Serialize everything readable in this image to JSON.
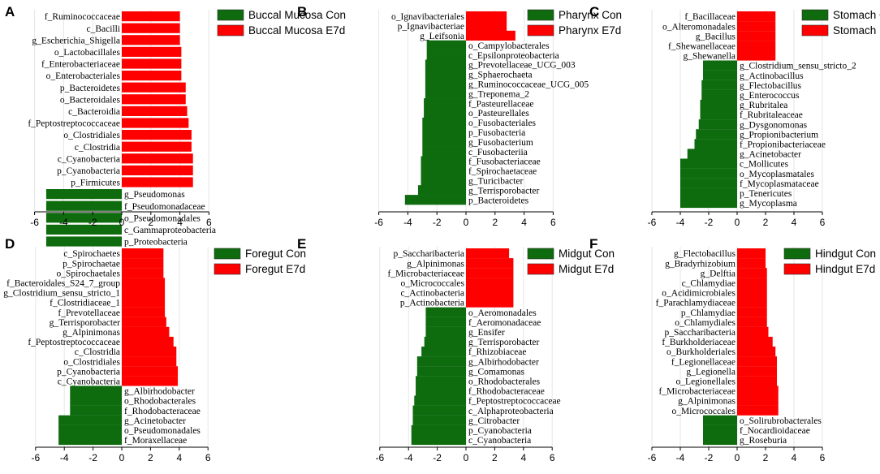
{
  "chart_data": [
    {
      "type": "bar",
      "panel": "A",
      "orientation": "horizontal",
      "legend": [
        {
          "name": "Buccal Mucosa Con",
          "color": "#0e6b0e"
        },
        {
          "name": "Buccal Mucosa E7d",
          "color": "#ff0000"
        }
      ],
      "xticks": [
        -6,
        -4,
        -2,
        0,
        2,
        4,
        6
      ],
      "xlim": [
        -6.5,
        6.5
      ],
      "bars": [
        {
          "label": "f_Ruminococcaceae",
          "value": 4.0,
          "group": "E7d"
        },
        {
          "label": "c_Bacilli",
          "value": 4.0,
          "group": "E7d"
        },
        {
          "label": "g_Escherichia_Shigella",
          "value": 4.0,
          "group": "E7d"
        },
        {
          "label": "o_Lactobacillales",
          "value": 4.1,
          "group": "E7d"
        },
        {
          "label": "f_Enterobacteriaceae",
          "value": 4.1,
          "group": "E7d"
        },
        {
          "label": "o_Enterobacteriales",
          "value": 4.1,
          "group": "E7d"
        },
        {
          "label": "p_Bacteroidetes",
          "value": 4.4,
          "group": "E7d"
        },
        {
          "label": "o_Bacteroidales",
          "value": 4.4,
          "group": "E7d"
        },
        {
          "label": "c_Bacteroidia",
          "value": 4.5,
          "group": "E7d"
        },
        {
          "label": "f_Peptostreptococcaceae",
          "value": 4.6,
          "group": "E7d"
        },
        {
          "label": "o_Clostridiales",
          "value": 4.8,
          "group": "E7d"
        },
        {
          "label": "c_Clostridia",
          "value": 4.8,
          "group": "E7d"
        },
        {
          "label": "c_Cyanobacteria",
          "value": 4.9,
          "group": "E7d"
        },
        {
          "label": "p_Cyanobacteria",
          "value": 4.9,
          "group": "E7d"
        },
        {
          "label": "p_Firmicutes",
          "value": 4.9,
          "group": "E7d"
        },
        {
          "label": "g_Pseudomonas",
          "value": -5.2,
          "group": "Con"
        },
        {
          "label": "f_Pseudomonadaceae",
          "value": -5.2,
          "group": "Con"
        },
        {
          "label": "o_Pseudomonadales",
          "value": -5.2,
          "group": "Con"
        },
        {
          "label": "c_Gammaproteobacteria",
          "value": -5.2,
          "group": "Con"
        },
        {
          "label": "p_Proteobacteria",
          "value": -5.2,
          "group": "Con"
        }
      ]
    },
    {
      "type": "bar",
      "panel": "B",
      "orientation": "horizontal",
      "legend": [
        {
          "name": "Pharynx Con",
          "color": "#0e6b0e"
        },
        {
          "name": "Pharynx E7d",
          "color": "#ff0000"
        }
      ],
      "xticks": [
        -6,
        -4,
        -2,
        0,
        2,
        4,
        6
      ],
      "xlim": [
        -6.5,
        6.5
      ],
      "bars": [
        {
          "label": "o_Ignavibacteriales",
          "value": 2.8,
          "group": "E7d"
        },
        {
          "label": "p_Ignavibacteriae",
          "value": 2.8,
          "group": "E7d"
        },
        {
          "label": "g_Leifsonia",
          "value": 3.4,
          "group": "E7d"
        },
        {
          "label": "o_Campylobacterales",
          "value": -2.7,
          "group": "Con"
        },
        {
          "label": "c_Epsilonproteobacteria",
          "value": -2.7,
          "group": "Con"
        },
        {
          "label": "g_Prevotellaceae_UCG_003",
          "value": -2.8,
          "group": "Con"
        },
        {
          "label": "g_Sphaerochaeta",
          "value": -2.8,
          "group": "Con"
        },
        {
          "label": "g_Ruminococcaceae_UCG_005",
          "value": -2.8,
          "group": "Con"
        },
        {
          "label": "g_Treponema_2",
          "value": -2.8,
          "group": "Con"
        },
        {
          "label": "f_Pasteurellaceae",
          "value": -2.9,
          "group": "Con"
        },
        {
          "label": "o_Pasteurellales",
          "value": -2.9,
          "group": "Con"
        },
        {
          "label": "o_Fusobacteriales",
          "value": -3.0,
          "group": "Con"
        },
        {
          "label": "p_Fusobacteria",
          "value": -3.0,
          "group": "Con"
        },
        {
          "label": "g_Fusobacterium",
          "value": -3.0,
          "group": "Con"
        },
        {
          "label": "c_Fusobacteriia",
          "value": -3.0,
          "group": "Con"
        },
        {
          "label": "f_Fusobacteriaceae",
          "value": -3.1,
          "group": "Con"
        },
        {
          "label": "f_Spirochaetaceae",
          "value": -3.1,
          "group": "Con"
        },
        {
          "label": "g_Turicibacter",
          "value": -3.1,
          "group": "Con"
        },
        {
          "label": "g_Terrisporobacter",
          "value": -3.3,
          "group": "Con"
        },
        {
          "label": "p_Bacteroidetes",
          "value": -4.2,
          "group": "Con"
        }
      ]
    },
    {
      "type": "bar",
      "panel": "C",
      "orientation": "horizontal",
      "legend": [
        {
          "name": "Stomach Con",
          "color": "#0e6b0e"
        },
        {
          "name": "Stomach E7d",
          "color": "#ff0000"
        }
      ],
      "xticks": [
        -6,
        -4,
        -2,
        0,
        2,
        4,
        6
      ],
      "xlim": [
        -6.5,
        6.5
      ],
      "bars": [
        {
          "label": "f_Bacillaceae",
          "value": 2.7,
          "group": "E7d"
        },
        {
          "label": "o_Alteromonadales",
          "value": 2.7,
          "group": "E7d"
        },
        {
          "label": "g_Bacillus",
          "value": 2.7,
          "group": "E7d"
        },
        {
          "label": "f_Shewanellaceae",
          "value": 2.7,
          "group": "E7d"
        },
        {
          "label": "g_Shewanella",
          "value": 2.7,
          "group": "E7d"
        },
        {
          "label": "g_Clostridium_sensu_stricto_2",
          "value": -2.4,
          "group": "Con"
        },
        {
          "label": "g_Actinobacillus",
          "value": -2.4,
          "group": "Con"
        },
        {
          "label": "g_Flectobacillus",
          "value": -2.5,
          "group": "Con"
        },
        {
          "label": "g_Enterococcus",
          "value": -2.5,
          "group": "Con"
        },
        {
          "label": "g_Rubritalea",
          "value": -2.6,
          "group": "Con"
        },
        {
          "label": "f_Rubritaleaceae",
          "value": -2.6,
          "group": "Con"
        },
        {
          "label": "g_Dysgonomonas",
          "value": -2.7,
          "group": "Con"
        },
        {
          "label": "g_Propionibacterium",
          "value": -2.9,
          "group": "Con"
        },
        {
          "label": "f_Propionibacteriaceae",
          "value": -3.0,
          "group": "Con"
        },
        {
          "label": "g_Acinetobacter",
          "value": -3.5,
          "group": "Con"
        },
        {
          "label": "c_Mollicutes",
          "value": -4.0,
          "group": "Con"
        },
        {
          "label": "o_Mycoplasmatales",
          "value": -4.0,
          "group": "Con"
        },
        {
          "label": "f_Mycoplasmataceae",
          "value": -4.0,
          "group": "Con"
        },
        {
          "label": "p_Tenericutes",
          "value": -4.0,
          "group": "Con"
        },
        {
          "label": "g_Mycoplasma",
          "value": -4.0,
          "group": "Con"
        }
      ]
    },
    {
      "type": "bar",
      "panel": "D",
      "orientation": "horizontal",
      "legend": [
        {
          "name": "Foregut Con",
          "color": "#0e6b0e"
        },
        {
          "name": "Foregut E7d",
          "color": "#ff0000"
        }
      ],
      "xticks": [
        -6,
        -4,
        -2,
        0,
        2,
        4,
        6
      ],
      "xlim": [
        -6.5,
        6.5
      ],
      "bars": [
        {
          "label": "c_Spirochaetes",
          "value": 2.9,
          "group": "E7d"
        },
        {
          "label": "p_Spirochaetae",
          "value": 2.9,
          "group": "E7d"
        },
        {
          "label": "o_Spirochaetales",
          "value": 2.9,
          "group": "E7d"
        },
        {
          "label": "f_Bacteroidales_S24_7_group",
          "value": 3.0,
          "group": "E7d"
        },
        {
          "label": "g_Clostridium_sensu_stricto_1",
          "value": 3.0,
          "group": "E7d"
        },
        {
          "label": "f_Clostridiaceae_1",
          "value": 3.0,
          "group": "E7d"
        },
        {
          "label": "f_Prevotellaceae",
          "value": 3.0,
          "group": "E7d"
        },
        {
          "label": "g_Terrisporobacter",
          "value": 3.1,
          "group": "E7d"
        },
        {
          "label": "g_Alpinimonas",
          "value": 3.3,
          "group": "E7d"
        },
        {
          "label": "f_Peptostreptococcaceae",
          "value": 3.6,
          "group": "E7d"
        },
        {
          "label": "c_Clostridia",
          "value": 3.8,
          "group": "E7d"
        },
        {
          "label": "o_Clostridiales",
          "value": 3.8,
          "group": "E7d"
        },
        {
          "label": "p_Cyanobacteria",
          "value": 3.9,
          "group": "E7d"
        },
        {
          "label": "c_Cyanobacteria",
          "value": 3.9,
          "group": "E7d"
        },
        {
          "label": "g_Albirhodobacter",
          "value": -3.6,
          "group": "Con"
        },
        {
          "label": "o_Rhodobacterales",
          "value": -3.6,
          "group": "Con"
        },
        {
          "label": "f_Rhodobacteraceae",
          "value": -3.6,
          "group": "Con"
        },
        {
          "label": "g_Acinetobacter",
          "value": -4.4,
          "group": "Con"
        },
        {
          "label": "o_Pseudomonadales",
          "value": -4.4,
          "group": "Con"
        },
        {
          "label": "f_Moraxellaceae",
          "value": -4.4,
          "group": "Con"
        }
      ]
    },
    {
      "type": "bar",
      "panel": "E",
      "orientation": "horizontal",
      "legend": [
        {
          "name": "Midgut Con",
          "color": "#0e6b0e"
        },
        {
          "name": "Midgut E7d",
          "color": "#ff0000"
        }
      ],
      "xticks": [
        -6,
        -4,
        -2,
        0,
        2,
        4,
        6
      ],
      "xlim": [
        -6.5,
        6.5
      ],
      "bars": [
        {
          "label": "p_Saccharibacteria",
          "value": 3.0,
          "group": "E7d"
        },
        {
          "label": "g_Alpinimonas",
          "value": 3.3,
          "group": "E7d"
        },
        {
          "label": "f_Microbacteriaceae",
          "value": 3.3,
          "group": "E7d"
        },
        {
          "label": "o_Micrococcales",
          "value": 3.3,
          "group": "E7d"
        },
        {
          "label": "c_Actinobacteria",
          "value": 3.3,
          "group": "E7d"
        },
        {
          "label": "p_Actinobacteria",
          "value": 3.3,
          "group": "E7d"
        },
        {
          "label": "o_Aeromonadales",
          "value": -2.8,
          "group": "Con"
        },
        {
          "label": "f_Aeromonadaceae",
          "value": -2.8,
          "group": "Con"
        },
        {
          "label": "g_Ensifer",
          "value": -2.8,
          "group": "Con"
        },
        {
          "label": "g_Terrisporobacter",
          "value": -2.9,
          "group": "Con"
        },
        {
          "label": "f_Rhizobiaceae",
          "value": -3.1,
          "group": "Con"
        },
        {
          "label": "g_Albirhodobacter",
          "value": -3.4,
          "group": "Con"
        },
        {
          "label": "g_Comamonas",
          "value": -3.4,
          "group": "Con"
        },
        {
          "label": "o_Rhodobacterales",
          "value": -3.5,
          "group": "Con"
        },
        {
          "label": "f_Rhodobacteraceae",
          "value": -3.5,
          "group": "Con"
        },
        {
          "label": "f_Peptostreptococcaceae",
          "value": -3.6,
          "group": "Con"
        },
        {
          "label": "c_Alphaproteobacteria",
          "value": -3.7,
          "group": "Con"
        },
        {
          "label": "g_Citrobacter",
          "value": -3.7,
          "group": "Con"
        },
        {
          "label": "p_Cyanobacteria",
          "value": -3.8,
          "group": "Con"
        },
        {
          "label": "c_Cyanobacteria",
          "value": -3.8,
          "group": "Con"
        }
      ]
    },
    {
      "type": "bar",
      "panel": "F",
      "orientation": "horizontal",
      "legend": [
        {
          "name": "Hindgut Con",
          "color": "#0e6b0e"
        },
        {
          "name": "Hindgut E7d",
          "color": "#ff0000"
        }
      ],
      "xticks": [
        -6,
        -4,
        -2,
        0,
        2,
        4,
        6
      ],
      "xlim": [
        -6.5,
        6.5
      ],
      "bars": [
        {
          "label": "g_Flectobacillus",
          "value": 2.0,
          "group": "E7d"
        },
        {
          "label": "g_Bradyrhizobium",
          "value": 2.0,
          "group": "E7d"
        },
        {
          "label": "g_Delftia",
          "value": 2.1,
          "group": "E7d"
        },
        {
          "label": "c_Chlamydiae",
          "value": 2.1,
          "group": "E7d"
        },
        {
          "label": "o_Acidimicrobiales",
          "value": 2.1,
          "group": "E7d"
        },
        {
          "label": "f_Parachlamydiaceae",
          "value": 2.1,
          "group": "E7d"
        },
        {
          "label": "p_Chlamydiae",
          "value": 2.1,
          "group": "E7d"
        },
        {
          "label": "o_Chlamydiales",
          "value": 2.1,
          "group": "E7d"
        },
        {
          "label": "p_Saccharibacteria",
          "value": 2.2,
          "group": "E7d"
        },
        {
          "label": "f_Burkholderiaceae",
          "value": 2.5,
          "group": "E7d"
        },
        {
          "label": "o_Burkholderiales",
          "value": 2.7,
          "group": "E7d"
        },
        {
          "label": "f_Legionellaceae",
          "value": 2.8,
          "group": "E7d"
        },
        {
          "label": "g_Legionella",
          "value": 2.8,
          "group": "E7d"
        },
        {
          "label": "o_Legionellales",
          "value": 2.8,
          "group": "E7d"
        },
        {
          "label": "f_Microbacteriaceae",
          "value": 2.9,
          "group": "E7d"
        },
        {
          "label": "g_Alpinimonas",
          "value": 2.9,
          "group": "E7d"
        },
        {
          "label": "o_Micrococcales",
          "value": 2.9,
          "group": "E7d"
        },
        {
          "label": "o_Solirubrobacterales",
          "value": -2.4,
          "group": "Con"
        },
        {
          "label": "f_Nocardioidaceae",
          "value": -2.4,
          "group": "Con"
        },
        {
          "label": "g_Roseburia",
          "value": -2.4,
          "group": "Con"
        }
      ]
    }
  ]
}
